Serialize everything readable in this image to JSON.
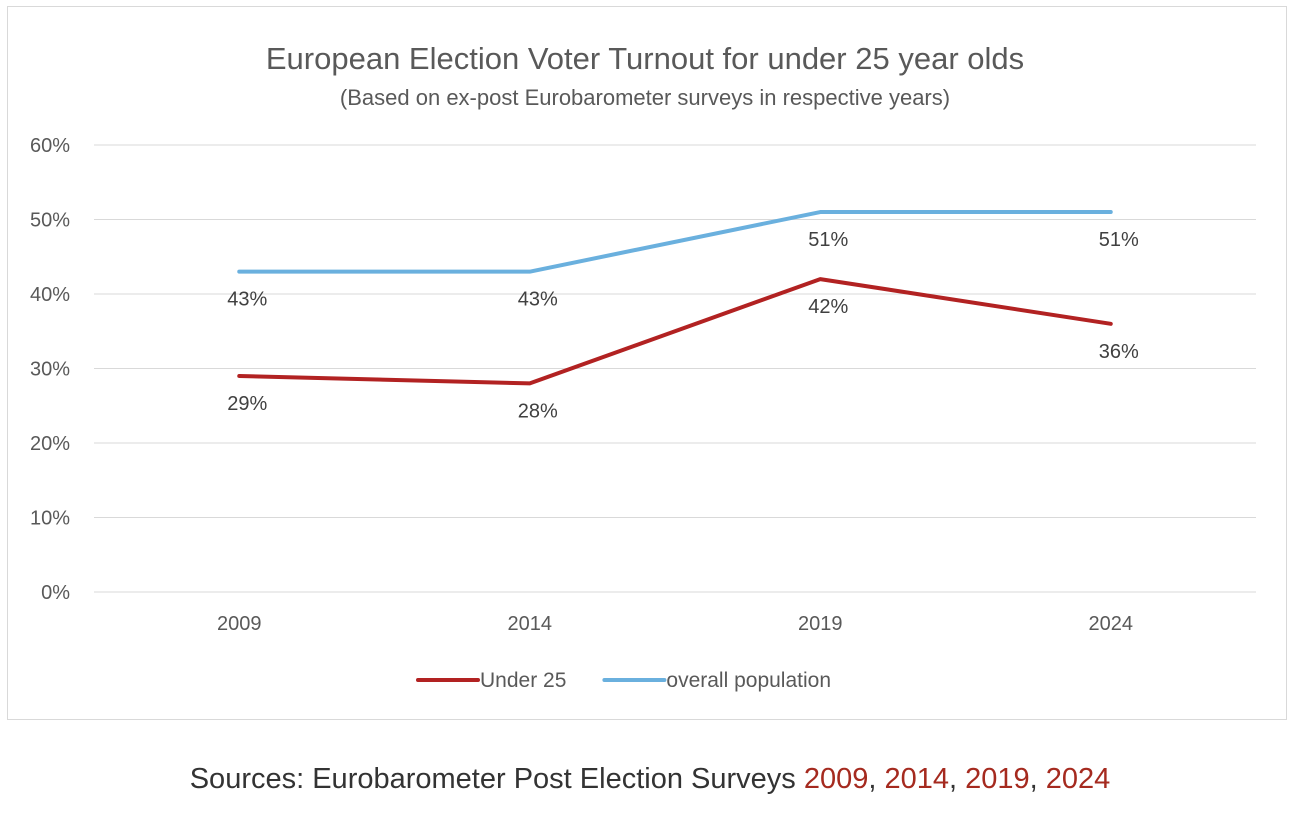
{
  "chart_data": {
    "type": "line",
    "title": "European Election Voter Turnout for under 25 year olds",
    "subtitle": "(Based on ex-post Eurobarometer surveys in respective years)",
    "categories": [
      "2009",
      "2014",
      "2019",
      "2024"
    ],
    "ylim": [
      0,
      60
    ],
    "y_ticks": [
      "0%",
      "10%",
      "20%",
      "30%",
      "40%",
      "50%",
      "60%"
    ],
    "grid": true,
    "legend_position": "bottom",
    "series": [
      {
        "name": "Under 25",
        "color": "#b22222",
        "values": [
          29,
          28,
          42,
          36
        ],
        "labels": [
          "29%",
          "28%",
          "42%",
          "36%"
        ]
      },
      {
        "name": "overall population",
        "color": "#6ab0de",
        "values": [
          43,
          43,
          51,
          51
        ],
        "labels": [
          "43%",
          "43%",
          "51%",
          "51%"
        ]
      }
    ]
  },
  "sources": {
    "prefix": "Sources: Eurobarometer Post Election Surveys ",
    "link_color": "#a52a1f",
    "links": [
      "2009",
      "2014",
      "2019",
      "2024"
    ],
    "separator": ", "
  }
}
